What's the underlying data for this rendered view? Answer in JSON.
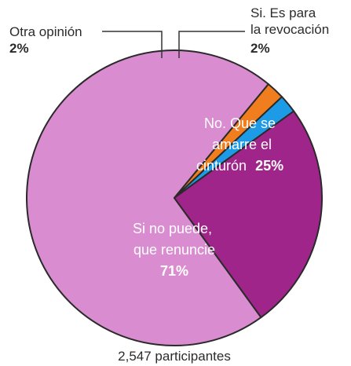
{
  "chart_data": {
    "type": "pie",
    "slices": [
      {
        "label_lines": [
          "Si no puede,",
          "que renuncie"
        ],
        "value": 71,
        "value_text": "71%",
        "color": "#d98ccf"
      },
      {
        "label_lines": [
          "Otra opinión"
        ],
        "value": 2,
        "value_text": "2%",
        "color": "#f07d1e"
      },
      {
        "label_lines": [
          "Si. Es para",
          "la revocación"
        ],
        "value": 2,
        "value_text": "2%",
        "color": "#1e9be6"
      },
      {
        "label_lines": [
          "No. Que se",
          "amarre el",
          "cinturón"
        ],
        "value": 25,
        "value_text": "25%",
        "color": "#a0258a"
      }
    ],
    "footnote": "2,547 participantes"
  }
}
